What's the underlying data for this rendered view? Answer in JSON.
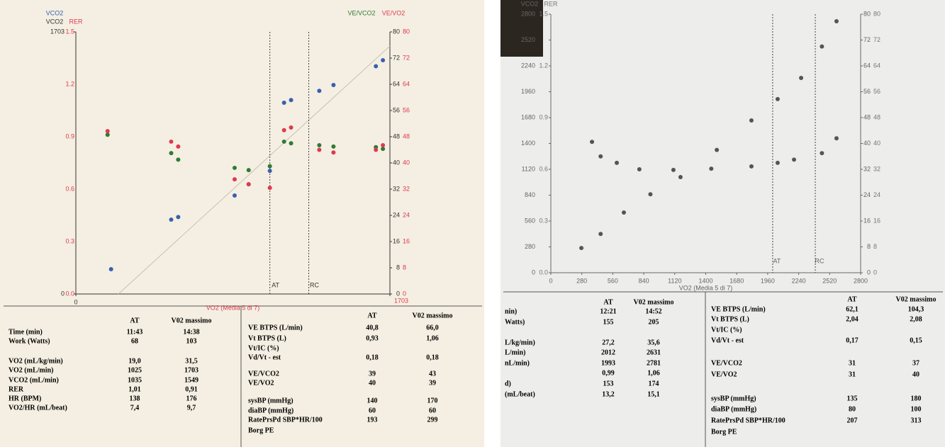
{
  "chart_data": [
    {
      "type": "scatter",
      "x_label": "VO2 (Media 5 di 7)",
      "y_label": "VCO2",
      "rer_label": "RER",
      "xlim": [
        0,
        1703
      ],
      "xticks": [
        0,
        1703
      ],
      "ylim": [
        0,
        1703
      ],
      "yticks": [
        0,
        1703
      ],
      "rerlim": [
        0,
        1.5
      ],
      "rerticks": [
        {
          "value": 0,
          "label": "0.0"
        },
        0.3,
        0.6,
        0.9,
        1.2,
        1.5
      ],
      "y2lim": [
        0,
        80
      ],
      "y2ticks": [
        0,
        8,
        16,
        24,
        32,
        40,
        48,
        56,
        64,
        72,
        80
      ],
      "markers": [
        {
          "label": "AT",
          "x": 1052
        },
        {
          "label": "RC",
          "x": 1263
        }
      ],
      "series": [
        {
          "name": "VCO2",
          "color": "#3a5fb0",
          "x": [
            191,
            517,
            555,
            861,
            937,
            1052,
            1129,
            1167,
            1320,
            1397,
            1627,
            1665
          ],
          "values": [
            161,
            483,
            500,
            640,
            713,
            800,
            1243,
            1260,
            1320,
            1358,
            1480,
            1519
          ]
        },
        {
          "name": "VE/VCO2",
          "color": "#2f7a35",
          "axis": "y2",
          "x": [
            172,
            517,
            555,
            861,
            937,
            1052,
            1129,
            1167,
            1320,
            1397,
            1627,
            1665
          ],
          "values": [
            48.6,
            43,
            41,
            38.5,
            37.8,
            39,
            46.5,
            46,
            45.4,
            45,
            44.8,
            44.3
          ]
        },
        {
          "name": "VE/VO2",
          "color": "#e0394f",
          "axis": "y2",
          "x": [
            172,
            517,
            555,
            861,
            937,
            1052,
            1129,
            1167,
            1320,
            1397,
            1627,
            1665
          ],
          "values": [
            49.7,
            46.5,
            45,
            35,
            33.5,
            32.4,
            50,
            50.8,
            44,
            43.2,
            44,
            45.4
          ]
        }
      ]
    },
    {
      "type": "scatter",
      "x_label": "VO2 (Media 5 di 7)",
      "y_label": "VCO2",
      "rer_label": "RER",
      "xlim": [
        0,
        2800
      ],
      "xticks": [
        0,
        280,
        560,
        840,
        1120,
        1400,
        1680,
        1960,
        2240,
        2520,
        2800
      ],
      "ylim": [
        0,
        2800
      ],
      "yticks": [
        0,
        280,
        560,
        840,
        1120,
        1400,
        1680,
        1960,
        2240,
        2520,
        2800
      ],
      "rerlim": [
        0,
        1.5
      ],
      "rerticks": [
        {
          "value": 0,
          "label": "0.0"
        },
        0.3,
        0.6,
        0.9,
        1.2,
        1.5
      ],
      "y2lim": [
        0,
        80
      ],
      "y2ticks": [
        0,
        8,
        16,
        24,
        32,
        40,
        48,
        56,
        64,
        72,
        80
      ],
      "markers": [
        {
          "label": "AT",
          "x": 2005
        },
        {
          "label": "RC",
          "x": 2390
        }
      ],
      "series": [
        {
          "color": "#555555",
          "x": [
            276,
            450,
            660,
            900,
            1172,
            1500,
            1813,
            2050,
            2262,
            2450,
            2582
          ],
          "values": [
            268,
            420,
            652,
            850,
            1036,
            1330,
            1649,
            1880,
            2110,
            2450,
            2723
          ]
        },
        {
          "color": "#555555",
          "axis": "y2",
          "x": [
            372,
            450,
            596,
            800,
            1108,
            1450,
            1813,
            2050,
            2198,
            2450,
            2582
          ],
          "values": [
            40.5,
            36,
            34,
            32,
            31.8,
            32.2,
            32.9,
            34,
            35,
            37,
            41.6
          ]
        }
      ]
    }
  ],
  "tables": [
    {
      "header": [
        "AT",
        "V02 massimo"
      ],
      "rows": [
        [
          "Time (min)",
          "11:43",
          "14:38"
        ],
        [
          "Work (Watts)",
          "68",
          "103"
        ],
        [
          "VO2 (mL/kg/min)",
          "19,0",
          "31,5"
        ],
        [
          "VO2 (mL/min)",
          "1025",
          "1703"
        ],
        [
          "VCO2 (mL/min)",
          "1035",
          "1549"
        ],
        [
          "RER",
          "1,01",
          "0,91"
        ],
        [
          "HR (BPM)",
          "138",
          "176"
        ],
        [
          "VO2/HR (mL/beat)",
          "7,4",
          "9,7"
        ]
      ]
    },
    {
      "header": [
        "AT",
        "V02 massimo"
      ],
      "rows": [
        [
          "VE BTPS (L/min)",
          "40,8",
          "66,0"
        ],
        [
          "Vt BTPS (L)",
          "0,93",
          "1,06"
        ],
        [
          "Vt/IC (%)",
          null,
          null
        ],
        [
          "Vd/Vt - est",
          "0,18",
          "0,18"
        ],
        [
          "VE/VCO2",
          "39",
          "43"
        ],
        [
          "VE/VO2",
          "40",
          "39"
        ],
        [
          "sysBP (mmHg)",
          "140",
          "170"
        ],
        [
          "diaBP (mmHg)",
          "60",
          "60"
        ],
        [
          "RatePrsPd SBP*HR/100",
          "193",
          "299"
        ],
        [
          "Borg PE",
          null,
          null
        ]
      ]
    },
    {
      "header": [
        "AT",
        "V02 massimo"
      ],
      "rows": [
        [
          "nin)",
          "12:21",
          "14:52"
        ],
        [
          "Watts)",
          "155",
          "205"
        ],
        [
          "L/kg/min)",
          "27,2",
          "35,6"
        ],
        [
          "L/min)",
          "2012",
          "2631"
        ],
        [
          "nL/min)",
          "1993",
          "2781"
        ],
        [
          null,
          "0,99",
          "1,06"
        ],
        [
          "d)",
          "153",
          "174"
        ],
        [
          "(mL/beat)",
          "13,2",
          "15,1"
        ]
      ]
    },
    {
      "header": [
        "AT",
        "V02 massimo"
      ],
      "rows": [
        [
          "VE BTPS (L/min)",
          "62,1",
          "104,3"
        ],
        [
          "Vt BTPS (L)",
          "2,04",
          "2,08"
        ],
        [
          "Vt/IC (%)",
          null,
          null
        ],
        [
          "Vd/Vt - est",
          "0,17",
          "0,15"
        ],
        [
          "VE/VCO2",
          "31",
          "37"
        ],
        [
          "VE/VO2",
          "31",
          "40"
        ],
        [
          "sysBP (mmHg)",
          "135",
          "180"
        ],
        [
          "diaBP (mmHg)",
          "80",
          "100"
        ],
        [
          "RatePrsPd SBP*HR/100",
          "207",
          "313"
        ],
        [
          "Borg PE",
          null,
          null
        ]
      ]
    }
  ]
}
